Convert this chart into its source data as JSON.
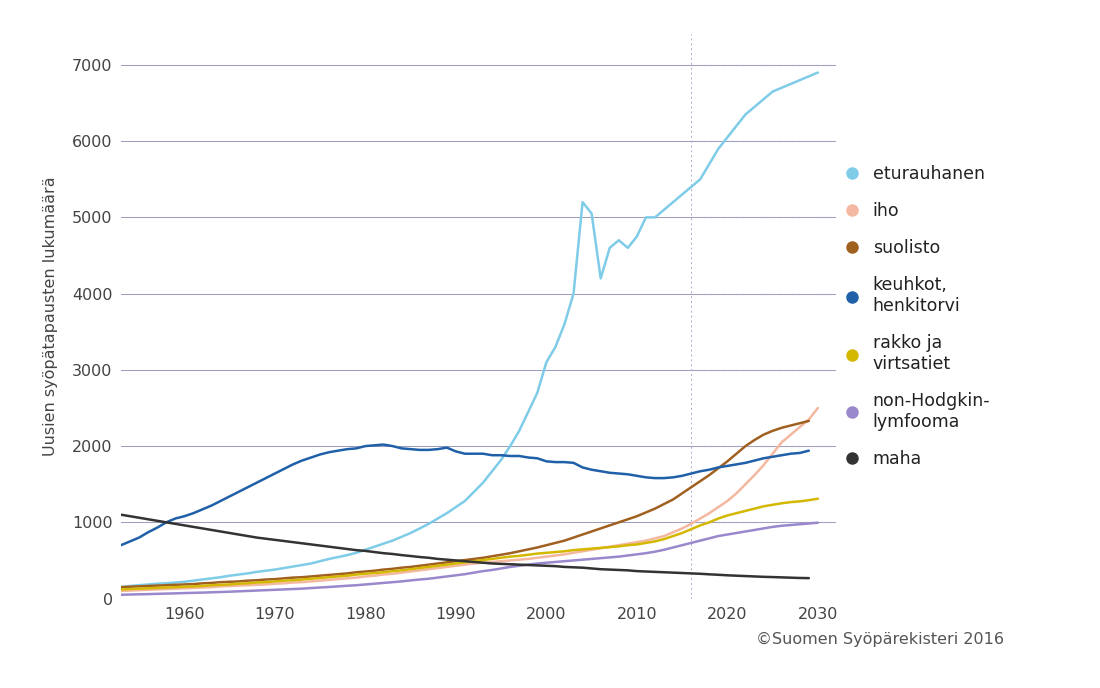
{
  "ylabel": "Uusien syöpätapausten lukumäärä",
  "xlim": [
    1953,
    2032
  ],
  "ylim": [
    0,
    7400
  ],
  "yticks": [
    0,
    1000,
    2000,
    3000,
    4000,
    5000,
    6000,
    7000
  ],
  "xticks": [
    1960,
    1970,
    1980,
    1990,
    2000,
    2010,
    2020,
    2030
  ],
  "background_color": "#ffffff",
  "grid_color": "#9999bb",
  "dotted_grid_color": "#aaaacc",
  "projection_start": 2016,
  "copyright": "©Suomen Syöpärekisteri 2016",
  "series": [
    {
      "key": "eturauhanen",
      "color": "#7ecce8",
      "linewidth": 1.8,
      "label": "eturauhanen",
      "data_x": [
        1953,
        1954,
        1955,
        1956,
        1957,
        1958,
        1959,
        1960,
        1961,
        1962,
        1963,
        1964,
        1965,
        1966,
        1967,
        1968,
        1969,
        1970,
        1971,
        1972,
        1973,
        1974,
        1975,
        1976,
        1977,
        1978,
        1979,
        1980,
        1981,
        1982,
        1983,
        1984,
        1985,
        1986,
        1987,
        1988,
        1989,
        1990,
        1991,
        1992,
        1993,
        1994,
        1995,
        1996,
        1997,
        1998,
        1999,
        2000,
        2001,
        2002,
        2003,
        2004,
        2005,
        2006,
        2007,
        2008,
        2009,
        2010,
        2011,
        2012,
        2013,
        2014,
        2015,
        2016,
        2017,
        2018,
        2019,
        2020,
        2021,
        2022,
        2023,
        2024,
        2025,
        2026,
        2027,
        2028,
        2029,
        2030
      ],
      "data_y": [
        150,
        165,
        175,
        185,
        195,
        200,
        210,
        220,
        235,
        250,
        265,
        280,
        300,
        315,
        330,
        350,
        365,
        380,
        400,
        420,
        440,
        460,
        490,
        520,
        545,
        570,
        600,
        640,
        680,
        720,
        760,
        810,
        860,
        920,
        980,
        1050,
        1120,
        1200,
        1280,
        1400,
        1520,
        1670,
        1820,
        2000,
        2200,
        2450,
        2700,
        3100,
        3300,
        3600,
        4000,
        5200,
        5050,
        4200,
        4600,
        4700,
        4600,
        4750,
        5000,
        5000,
        5100,
        5200,
        5300,
        5400,
        5500,
        5700,
        5900,
        6050,
        6200,
        6350,
        6450,
        6550,
        6650,
        6700,
        6750,
        6800,
        6850,
        6900
      ]
    },
    {
      "key": "iho",
      "color": "#f4b8a0",
      "linewidth": 1.8,
      "label": "iho",
      "data_x": [
        1953,
        1954,
        1955,
        1956,
        1957,
        1958,
        1959,
        1960,
        1961,
        1962,
        1963,
        1964,
        1965,
        1966,
        1967,
        1968,
        1969,
        1970,
        1971,
        1972,
        1973,
        1974,
        1975,
        1976,
        1977,
        1978,
        1979,
        1980,
        1981,
        1982,
        1983,
        1984,
        1985,
        1986,
        1987,
        1988,
        1989,
        1990,
        1991,
        1992,
        1993,
        1994,
        1995,
        1996,
        1997,
        1998,
        1999,
        2000,
        2001,
        2002,
        2003,
        2004,
        2005,
        2006,
        2007,
        2008,
        2009,
        2010,
        2011,
        2012,
        2013,
        2014,
        2015,
        2016,
        2017,
        2018,
        2019,
        2020,
        2021,
        2022,
        2023,
        2024,
        2025,
        2026,
        2027,
        2028,
        2029,
        2030
      ],
      "data_y": [
        100,
        105,
        110,
        115,
        120,
        125,
        130,
        135,
        140,
        145,
        150,
        160,
        165,
        170,
        175,
        180,
        185,
        195,
        200,
        210,
        215,
        225,
        235,
        245,
        255,
        265,
        275,
        290,
        300,
        315,
        325,
        340,
        355,
        370,
        385,
        400,
        415,
        430,
        445,
        460,
        470,
        480,
        490,
        500,
        510,
        520,
        535,
        550,
        565,
        580,
        600,
        620,
        640,
        660,
        680,
        700,
        720,
        740,
        760,
        790,
        820,
        870,
        920,
        980,
        1050,
        1120,
        1200,
        1280,
        1380,
        1500,
        1620,
        1750,
        1900,
        2050,
        2150,
        2250,
        2350,
        2500
      ]
    },
    {
      "key": "suolisto",
      "color": "#a06020",
      "linewidth": 1.8,
      "label": "suolisto",
      "data_x": [
        1953,
        1954,
        1955,
        1956,
        1957,
        1958,
        1959,
        1960,
        1961,
        1962,
        1963,
        1964,
        1965,
        1966,
        1967,
        1968,
        1969,
        1970,
        1971,
        1972,
        1973,
        1974,
        1975,
        1976,
        1977,
        1978,
        1979,
        1980,
        1981,
        1982,
        1983,
        1984,
        1985,
        1986,
        1987,
        1988,
        1989,
        1990,
        1991,
        1992,
        1993,
        1994,
        1995,
        1996,
        1997,
        1998,
        1999,
        2000,
        2001,
        2002,
        2003,
        2004,
        2005,
        2006,
        2007,
        2008,
        2009,
        2010,
        2011,
        2012,
        2013,
        2014,
        2015,
        2016,
        2017,
        2018,
        2019,
        2020,
        2021,
        2022,
        2023,
        2024,
        2025,
        2026,
        2027,
        2028,
        2029,
        2030
      ],
      "data_y": [
        150,
        155,
        160,
        165,
        170,
        175,
        180,
        185,
        190,
        200,
        205,
        215,
        220,
        225,
        235,
        240,
        250,
        255,
        265,
        275,
        280,
        290,
        300,
        310,
        320,
        330,
        345,
        355,
        365,
        380,
        390,
        405,
        415,
        430,
        445,
        460,
        475,
        490,
        505,
        520,
        535,
        555,
        575,
        595,
        620,
        645,
        670,
        700,
        730,
        760,
        800,
        840,
        880,
        920,
        960,
        1000,
        1040,
        1080,
        1130,
        1180,
        1240,
        1300,
        1380,
        1460,
        1540,
        1620,
        1710,
        1800,
        1900,
        2000,
        2080,
        2150,
        2200,
        2240,
        2270,
        2300,
        2330
      ]
    },
    {
      "key": "keuhkot_henkitorvi",
      "color": "#2060a8",
      "linewidth": 1.8,
      "label": "keuhkot,\nhenkitorvi",
      "data_x": [
        1953,
        1954,
        1955,
        1956,
        1957,
        1958,
        1959,
        1960,
        1961,
        1962,
        1963,
        1964,
        1965,
        1966,
        1967,
        1968,
        1969,
        1970,
        1971,
        1972,
        1973,
        1974,
        1975,
        1976,
        1977,
        1978,
        1979,
        1980,
        1981,
        1982,
        1983,
        1984,
        1985,
        1986,
        1987,
        1988,
        1989,
        1990,
        1991,
        1992,
        1993,
        1994,
        1995,
        1996,
        1997,
        1998,
        1999,
        2000,
        2001,
        2002,
        2003,
        2004,
        2005,
        2006,
        2007,
        2008,
        2009,
        2010,
        2011,
        2012,
        2013,
        2014,
        2015,
        2016,
        2017,
        2018,
        2019,
        2020,
        2021,
        2022,
        2023,
        2024,
        2025,
        2026,
        2027,
        2028,
        2029,
        2030
      ],
      "data_y": [
        700,
        750,
        800,
        870,
        930,
        1000,
        1050,
        1080,
        1120,
        1170,
        1220,
        1280,
        1340,
        1400,
        1460,
        1520,
        1580,
        1640,
        1700,
        1760,
        1810,
        1850,
        1890,
        1920,
        1940,
        1960,
        1970,
        2000,
        2010,
        2020,
        2000,
        1970,
        1960,
        1950,
        1950,
        1960,
        1980,
        1930,
        1900,
        1900,
        1900,
        1880,
        1880,
        1870,
        1870,
        1850,
        1840,
        1800,
        1790,
        1790,
        1780,
        1720,
        1690,
        1670,
        1650,
        1640,
        1630,
        1610,
        1590,
        1580,
        1580,
        1590,
        1610,
        1640,
        1670,
        1690,
        1720,
        1740,
        1760,
        1780,
        1810,
        1840,
        1860,
        1880,
        1900,
        1910,
        1940
      ]
    },
    {
      "key": "rakko_virtsatiet",
      "color": "#d4b800",
      "linewidth": 1.8,
      "label": "rakko ja\nvirtsatiet",
      "data_x": [
        1953,
        1954,
        1955,
        1956,
        1957,
        1958,
        1959,
        1960,
        1961,
        1962,
        1963,
        1964,
        1965,
        1966,
        1967,
        1968,
        1969,
        1970,
        1971,
        1972,
        1973,
        1974,
        1975,
        1976,
        1977,
        1978,
        1979,
        1980,
        1981,
        1982,
        1983,
        1984,
        1985,
        1986,
        1987,
        1988,
        1989,
        1990,
        1991,
        1992,
        1993,
        1994,
        1995,
        1996,
        1997,
        1998,
        1999,
        2000,
        2001,
        2002,
        2003,
        2004,
        2005,
        2006,
        2007,
        2008,
        2009,
        2010,
        2011,
        2012,
        2013,
        2014,
        2015,
        2016,
        2017,
        2018,
        2019,
        2020,
        2021,
        2022,
        2023,
        2024,
        2025,
        2026,
        2027,
        2028,
        2029,
        2030
      ],
      "data_y": [
        120,
        125,
        130,
        135,
        140,
        145,
        150,
        155,
        160,
        165,
        175,
        180,
        185,
        195,
        200,
        210,
        215,
        225,
        235,
        240,
        250,
        260,
        270,
        280,
        290,
        300,
        315,
        325,
        335,
        345,
        360,
        370,
        385,
        400,
        415,
        430,
        445,
        460,
        475,
        490,
        505,
        520,
        535,
        550,
        560,
        575,
        590,
        600,
        610,
        620,
        635,
        645,
        655,
        665,
        675,
        685,
        700,
        710,
        730,
        750,
        780,
        820,
        860,
        910,
        960,
        1000,
        1050,
        1090,
        1120,
        1150,
        1180,
        1210,
        1230,
        1250,
        1265,
        1275,
        1290,
        1310
      ]
    },
    {
      "key": "non_hodgkin",
      "color": "#9988cc",
      "linewidth": 1.8,
      "label": "non-Hodgkin-\nlymfooma",
      "data_x": [
        1953,
        1954,
        1955,
        1956,
        1957,
        1958,
        1959,
        1960,
        1961,
        1962,
        1963,
        1964,
        1965,
        1966,
        1967,
        1968,
        1969,
        1970,
        1971,
        1972,
        1973,
        1974,
        1975,
        1976,
        1977,
        1978,
        1979,
        1980,
        1981,
        1982,
        1983,
        1984,
        1985,
        1986,
        1987,
        1988,
        1989,
        1990,
        1991,
        1992,
        1993,
        1994,
        1995,
        1996,
        1997,
        1998,
        1999,
        2000,
        2001,
        2002,
        2003,
        2004,
        2005,
        2006,
        2007,
        2008,
        2009,
        2010,
        2011,
        2012,
        2013,
        2014,
        2015,
        2016,
        2017,
        2018,
        2019,
        2020,
        2021,
        2022,
        2023,
        2024,
        2025,
        2026,
        2027,
        2028,
        2029,
        2030
      ],
      "data_y": [
        50,
        53,
        56,
        58,
        62,
        65,
        68,
        72,
        75,
        78,
        82,
        86,
        90,
        95,
        100,
        105,
        110,
        115,
        120,
        125,
        130,
        138,
        145,
        152,
        160,
        168,
        175,
        185,
        195,
        205,
        215,
        225,
        238,
        250,
        260,
        275,
        290,
        305,
        320,
        340,
        360,
        375,
        395,
        415,
        430,
        445,
        460,
        470,
        480,
        490,
        500,
        510,
        520,
        530,
        540,
        550,
        565,
        580,
        595,
        615,
        640,
        670,
        700,
        730,
        760,
        790,
        820,
        840,
        860,
        880,
        900,
        920,
        940,
        955,
        965,
        975,
        985,
        995
      ]
    },
    {
      "key": "maha",
      "color": "#333333",
      "linewidth": 1.8,
      "label": "maha",
      "data_x": [
        1953,
        1954,
        1955,
        1956,
        1957,
        1958,
        1959,
        1960,
        1961,
        1962,
        1963,
        1964,
        1965,
        1966,
        1967,
        1968,
        1969,
        1970,
        1971,
        1972,
        1973,
        1974,
        1975,
        1976,
        1977,
        1978,
        1979,
        1980,
        1981,
        1982,
        1983,
        1984,
        1985,
        1986,
        1987,
        1988,
        1989,
        1990,
        1991,
        1992,
        1993,
        1994,
        1995,
        1996,
        1997,
        1998,
        1999,
        2000,
        2001,
        2002,
        2003,
        2004,
        2005,
        2006,
        2007,
        2008,
        2009,
        2010,
        2011,
        2012,
        2013,
        2014,
        2015,
        2016,
        2017,
        2018,
        2019,
        2020,
        2021,
        2022,
        2023,
        2024,
        2025,
        2026,
        2027,
        2028,
        2029,
        2030
      ],
      "data_y": [
        1100,
        1080,
        1060,
        1040,
        1020,
        1000,
        980,
        960,
        940,
        920,
        900,
        880,
        860,
        840,
        820,
        800,
        785,
        770,
        755,
        740,
        725,
        710,
        695,
        680,
        665,
        650,
        635,
        625,
        610,
        595,
        585,
        570,
        558,
        545,
        535,
        520,
        510,
        500,
        490,
        480,
        470,
        460,
        455,
        450,
        445,
        440,
        435,
        430,
        425,
        415,
        410,
        405,
        395,
        385,
        380,
        375,
        370,
        360,
        355,
        350,
        345,
        340,
        335,
        330,
        325,
        318,
        312,
        305,
        300,
        295,
        290,
        285,
        282,
        278,
        274,
        270,
        268
      ]
    }
  ]
}
